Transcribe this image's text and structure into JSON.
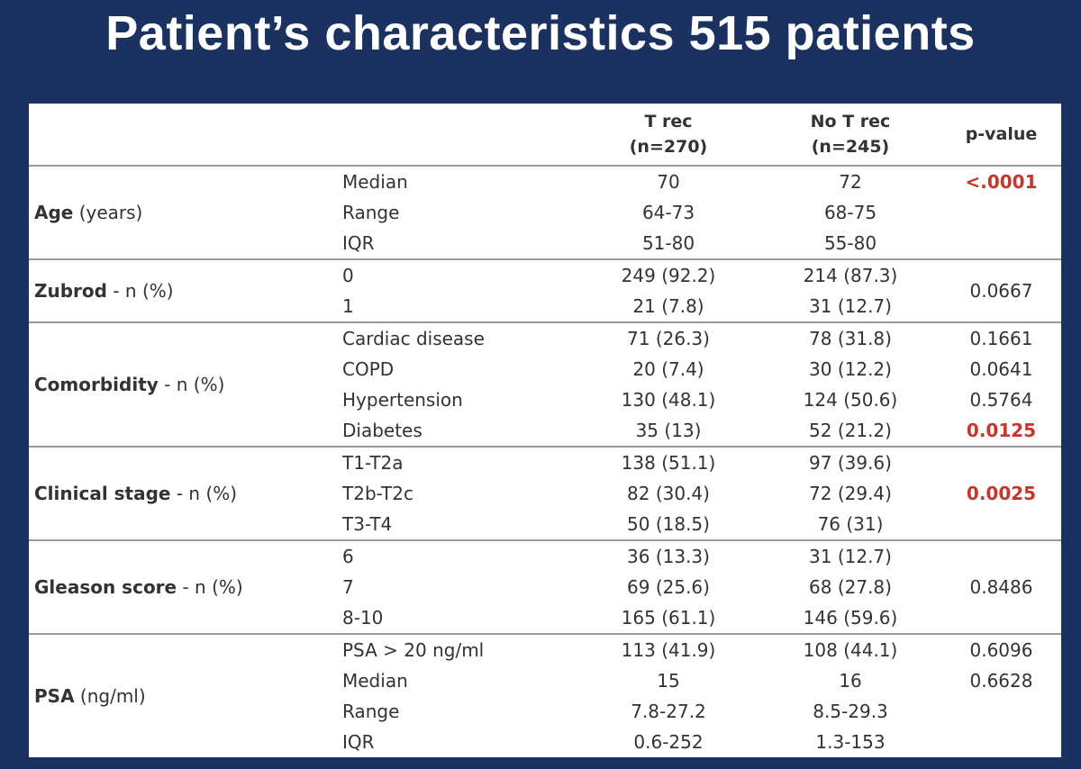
{
  "header": {
    "title": "Patient’s characteristics 515 patients"
  },
  "table": {
    "columns": {
      "t_rec": [
        "T rec",
        "(n=270)"
      ],
      "no_t_rec": [
        "No T rec",
        "(n=245)"
      ],
      "p_value": "p-value"
    },
    "p_red_color": "#c0392b",
    "groups": [
      {
        "name": "Age",
        "unit": "(years)",
        "rows": [
          {
            "label": "Median",
            "t_rec": "70",
            "no_t_rec": "72",
            "p": "<.0001",
            "p_red": true
          },
          {
            "label": "Range",
            "t_rec": "64-73",
            "no_t_rec": "68-75"
          },
          {
            "label": "IQR",
            "t_rec": "51-80",
            "no_t_rec": "55-80"
          }
        ]
      },
      {
        "name": "Zubrod",
        "unit": " - n (%)",
        "p": "0.0667",
        "rows": [
          {
            "label": "0",
            "t_rec": "249 (92.2)",
            "no_t_rec": "214 (87.3)"
          },
          {
            "label": "1",
            "t_rec": "21 (7.8)",
            "no_t_rec": "31 (12.7)"
          }
        ]
      },
      {
        "name": "Comorbidity",
        "unit": "- n (%)",
        "rows": [
          {
            "label": "Cardiac disease",
            "t_rec": "71 (26.3)",
            "no_t_rec": "78 (31.8)",
            "p": "0.1661"
          },
          {
            "label": "COPD",
            "t_rec": "20 (7.4)",
            "no_t_rec": "30 (12.2)",
            "p": "0.0641"
          },
          {
            "label": "Hypertension",
            "t_rec": "130 (48.1)",
            "no_t_rec": "124 (50.6)",
            "p": "0.5764"
          },
          {
            "label": "Diabetes",
            "t_rec": "35 (13)",
            "no_t_rec": "52 (21.2)",
            "p": "0.0125",
            "p_red": true
          }
        ]
      },
      {
        "name": "Clinical stage",
        "unit": "- n (%)",
        "p": "0.0025",
        "p_red": true,
        "rows": [
          {
            "label": "T1-T2a",
            "t_rec": "138 (51.1)",
            "no_t_rec": "97 (39.6)"
          },
          {
            "label": "T2b-T2c",
            "t_rec": "82 (30.4)",
            "no_t_rec": "72 (29.4)"
          },
          {
            "label": "T3-T4",
            "t_rec": "50 (18.5)",
            "no_t_rec": "76 (31)"
          }
        ]
      },
      {
        "name": "Gleason score",
        "unit": "- n (%)",
        "p": "0.8486",
        "rows": [
          {
            "label": "6",
            "t_rec": "36 (13.3)",
            "no_t_rec": "31 (12.7)"
          },
          {
            "label": "7",
            "t_rec": "69 (25.6)",
            "no_t_rec": "68 (27.8)"
          },
          {
            "label": "8-10",
            "t_rec": "165 (61.1)",
            "no_t_rec": "146 (59.6)"
          }
        ]
      },
      {
        "name": "PSA",
        "unit": "(ng/ml)",
        "rows": [
          {
            "label": "PSA > 20 ng/ml",
            "t_rec": "113 (41.9)",
            "no_t_rec": "108 (44.1)",
            "p": "0.6096"
          },
          {
            "label": "Median",
            "t_rec": "15",
            "no_t_rec": "16",
            "p": "0.6628"
          },
          {
            "label": "Range",
            "t_rec": "7.8-27.2",
            "no_t_rec": "8.5-29.3"
          },
          {
            "label": "IQR",
            "t_rec": "0.6-252",
            "no_t_rec": "1.3-153"
          }
        ]
      }
    ]
  }
}
